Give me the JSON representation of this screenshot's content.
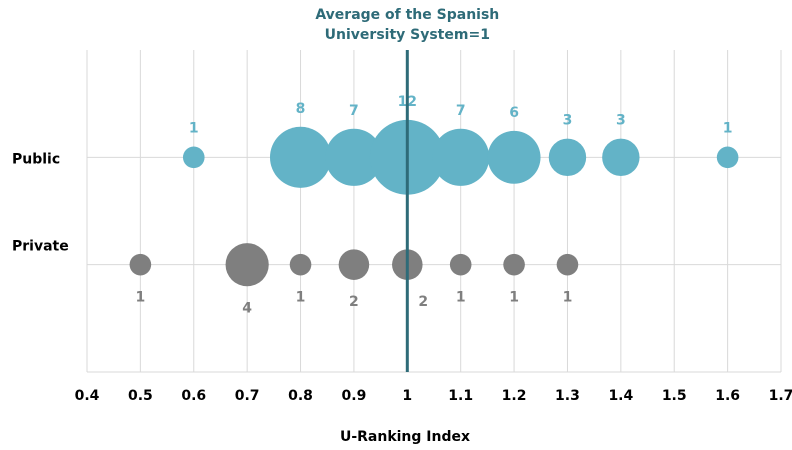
{
  "chart_data": {
    "type": "bubble",
    "x_label": "U-Ranking Index",
    "xlim": [
      0.4,
      1.7
    ],
    "xticks": [
      0.4,
      0.5,
      0.6,
      0.7,
      0.8,
      0.9,
      1,
      1.1,
      1.2,
      1.3,
      1.4,
      1.5,
      1.6,
      1.7
    ],
    "ylim": [
      0,
      3
    ],
    "grid": true,
    "reference_line": {
      "x": 1,
      "color": "#2e6b78",
      "label": [
        "Average of the Spanish",
        "University System=1"
      ]
    },
    "series": [
      {
        "name": "Public",
        "color": "#63b3c7",
        "x": [
          0.6,
          0.8,
          0.9,
          1,
          1.1,
          1.2,
          1.3,
          1.4,
          1.6
        ],
        "y": [
          2,
          2,
          2,
          2,
          2,
          2,
          2,
          2,
          2
        ],
        "sizes": [
          1,
          8,
          7,
          12,
          7,
          6,
          3,
          3,
          1
        ]
      },
      {
        "name": "Private",
        "color": "#7f7f7f",
        "x": [
          0.5,
          0.7,
          0.8,
          0.9,
          1,
          1.1,
          1.2,
          1.3
        ],
        "y": [
          1,
          1,
          1,
          1,
          1,
          1,
          1,
          1
        ],
        "sizes": [
          1,
          4,
          1,
          2,
          2,
          1,
          1,
          1
        ]
      }
    ]
  }
}
